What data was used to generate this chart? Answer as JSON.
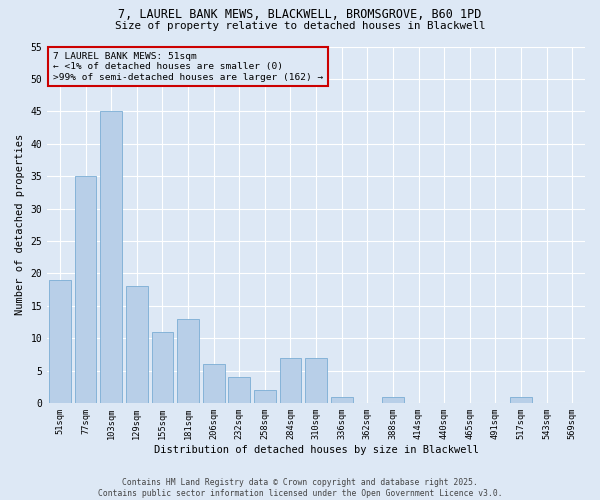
{
  "title_line1": "7, LAUREL BANK MEWS, BLACKWELL, BROMSGROVE, B60 1PD",
  "title_line2": "Size of property relative to detached houses in Blackwell",
  "xlabel": "Distribution of detached houses by size in Blackwell",
  "ylabel": "Number of detached properties",
  "bar_categories": [
    "51sqm",
    "77sqm",
    "103sqm",
    "129sqm",
    "155sqm",
    "181sqm",
    "206sqm",
    "232sqm",
    "258sqm",
    "284sqm",
    "310sqm",
    "336sqm",
    "362sqm",
    "388sqm",
    "414sqm",
    "440sqm",
    "465sqm",
    "491sqm",
    "517sqm",
    "543sqm",
    "569sqm"
  ],
  "bar_values": [
    19,
    35,
    45,
    18,
    11,
    13,
    6,
    4,
    2,
    7,
    7,
    1,
    0,
    1,
    0,
    0,
    0,
    0,
    1,
    0,
    0
  ],
  "bar_color": "#b8cfe8",
  "bar_edgecolor": "#7aadd4",
  "ylim": [
    0,
    55
  ],
  "yticks": [
    0,
    5,
    10,
    15,
    20,
    25,
    30,
    35,
    40,
    45,
    50,
    55
  ],
  "bg_color": "#dde8f5",
  "grid_color": "#ffffff",
  "annotation_text": "7 LAUREL BANK MEWS: 51sqm\n← <1% of detached houses are smaller (0)\n>99% of semi-detached houses are larger (162) →",
  "annotation_box_edgecolor": "#cc0000",
  "footer_line1": "Contains HM Land Registry data © Crown copyright and database right 2025.",
  "footer_line2": "Contains public sector information licensed under the Open Government Licence v3.0."
}
